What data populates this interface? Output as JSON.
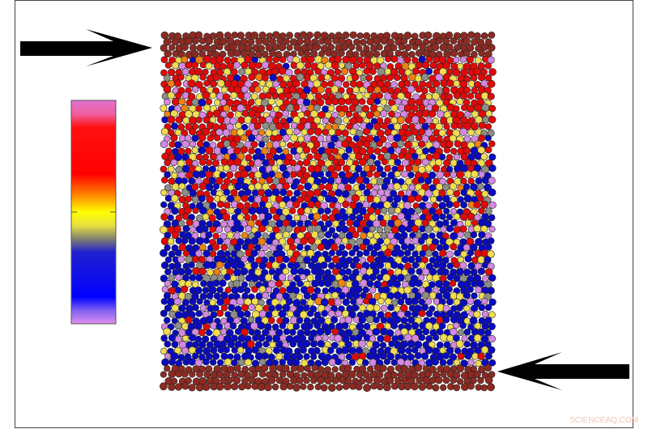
{
  "watermark": "SCIENCEAQ.COM"
}
